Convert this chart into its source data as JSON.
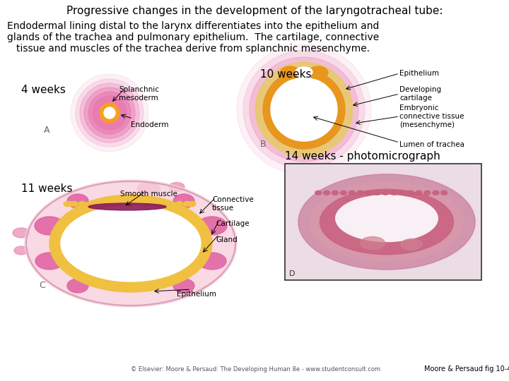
{
  "title": "Progressive changes in the development of the laryngotracheal tube:",
  "body_text": "Endodermal lining distal to the larynx differentiates into the epithelium and\nglands of the trachea and pulmonary epithelium.  The cartilage, connective\ntissue and muscles of the trachea derive from splanchnic mesenchyme.",
  "label_4weeks": "4 weeks",
  "label_10weeks": "10 weeks",
  "label_11weeks": "11 weeks",
  "label_14weeks": "14 weeks - photomicrograph",
  "label_A": "A",
  "label_B": "B",
  "label_C": "C",
  "label_D": "D",
  "ann_splanchnic": "Splanchnic\nmesoderm",
  "ann_endoderm": "Endoderm",
  "ann_epithelium": "Epithelium",
  "ann_dev_cartilage": "Developing\ncartilage",
  "ann_embryonic": "Embryonic\nconnective tissue\n(mesenchyme)",
  "ann_lumen": "Lumen of trachea",
  "ann_smooth": "Smooth muscle",
  "ann_connective": "Connective\ntissue",
  "ann_cartilage": "Cartilage",
  "ann_gland": "Gland",
  "ann_epithelium2": "Epithelium",
  "copyright": "© Elsevier: Moore & Persaud: The Developing Human 8e - www.studentconsult.com",
  "moore": "Moore & Persaud fig 10-4",
  "bg_color": "#ffffff",
  "title_fontsize": 11,
  "body_fontsize": 10,
  "label_fontsize": 11,
  "annot_fontsize": 7.5
}
